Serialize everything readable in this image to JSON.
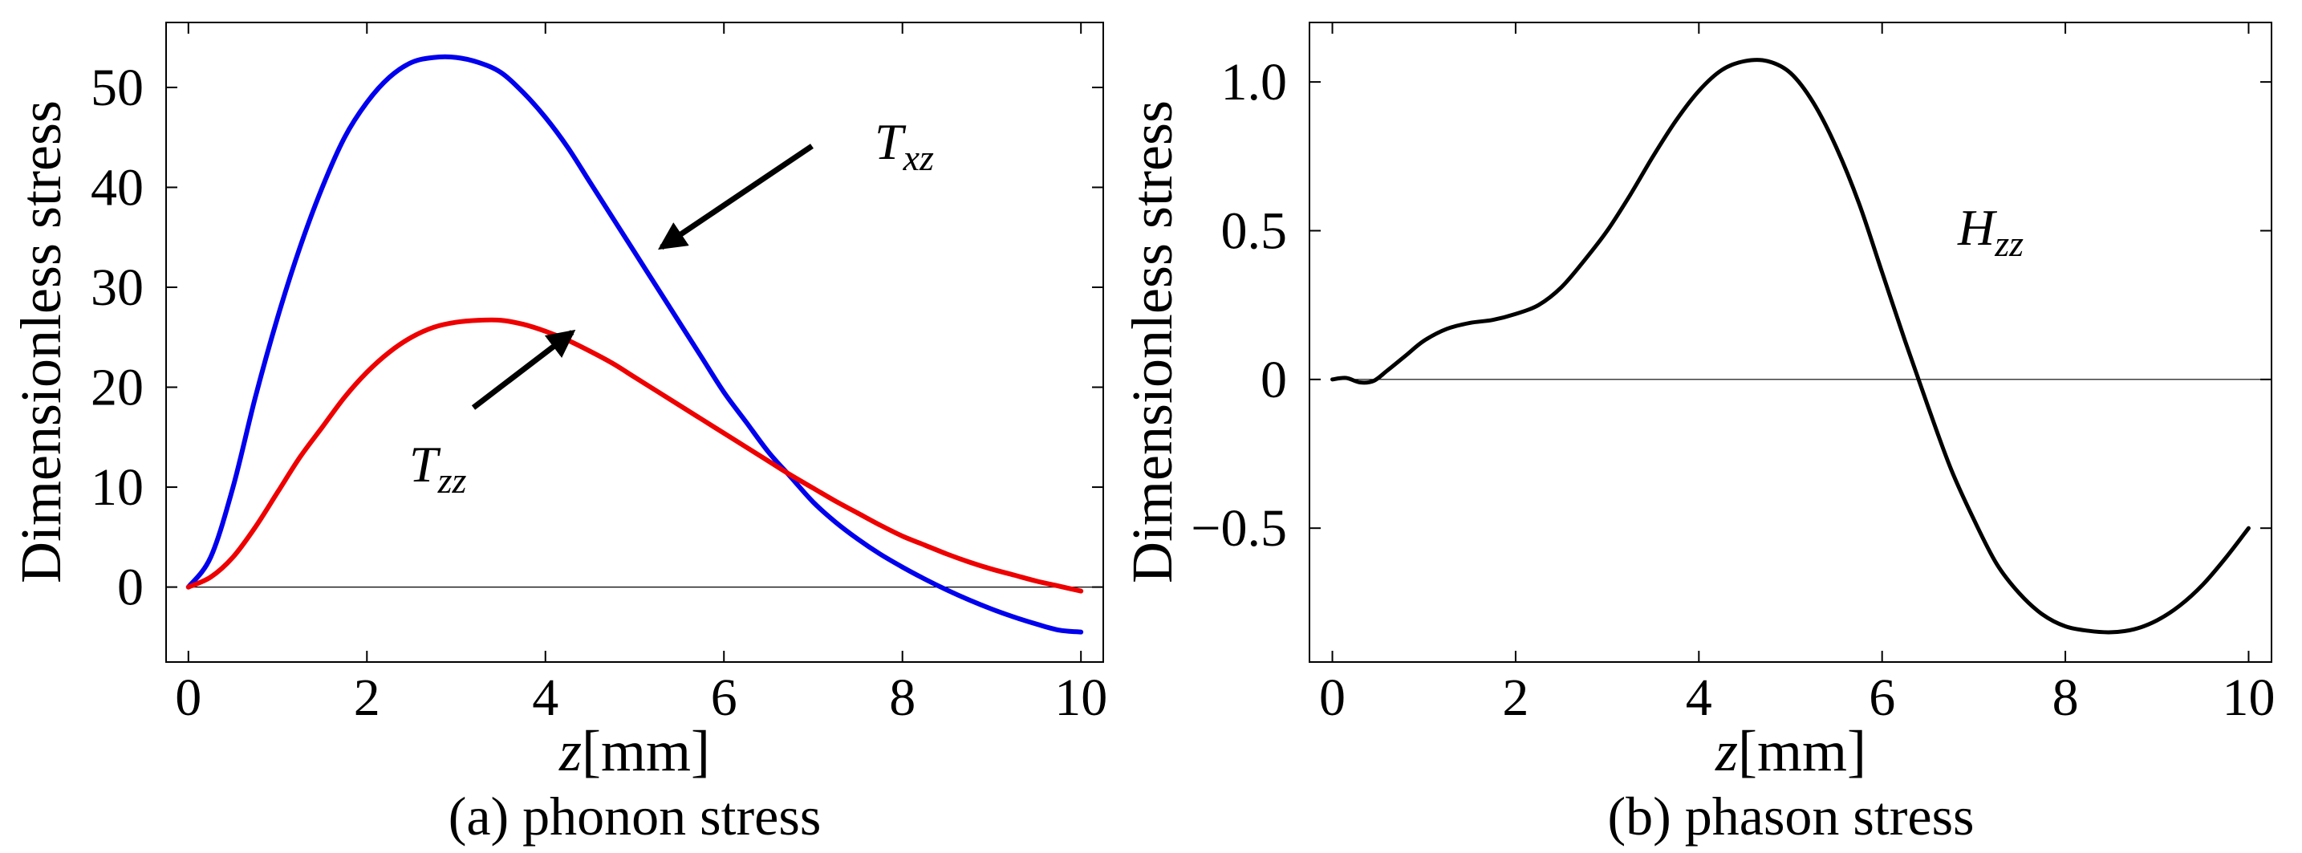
{
  "chart_data": [
    {
      "type": "line",
      "id": "a",
      "caption": "(a) phonon stress",
      "xlabel_var": "z",
      "xlabel_unit": "[mm]",
      "ylabel": "Dimensionless stress",
      "xlim": [
        -0.25,
        10.25
      ],
      "ylim": [
        -7.5,
        56.5
      ],
      "xticks": [
        0,
        2,
        4,
        6,
        8,
        10
      ],
      "yticks": [
        0,
        10,
        20,
        30,
        40,
        50
      ],
      "zero_line": true,
      "series": [
        {
          "name": "Txz",
          "color": "#0000ee",
          "x": [
            0,
            0.25,
            0.5,
            0.75,
            1,
            1.25,
            1.5,
            1.75,
            2,
            2.25,
            2.5,
            2.75,
            3,
            3.25,
            3.5,
            3.75,
            4,
            4.25,
            4.5,
            4.75,
            5,
            5.25,
            5.5,
            5.75,
            6,
            6.25,
            6.5,
            6.75,
            7,
            7.25,
            7.5,
            7.75,
            8,
            8.25,
            8.5,
            8.75,
            9,
            9.25,
            9.5,
            9.75,
            10
          ],
          "y": [
            0,
            3,
            10,
            19,
            27,
            34,
            40,
            45,
            48.5,
            51,
            52.5,
            53,
            53,
            52.5,
            51.5,
            49.5,
            47,
            44,
            40.5,
            37,
            33.5,
            30,
            26.5,
            23,
            19.5,
            16.5,
            13.5,
            11,
            8.5,
            6.5,
            4.8,
            3.3,
            2,
            0.8,
            -0.3,
            -1.3,
            -2.2,
            -3,
            -3.7,
            -4.3,
            -4.5
          ]
        },
        {
          "name": "Tzz",
          "color": "#ee0000",
          "x": [
            0,
            0.25,
            0.5,
            0.75,
            1,
            1.25,
            1.5,
            1.75,
            2,
            2.25,
            2.5,
            2.75,
            3,
            3.25,
            3.5,
            3.75,
            4,
            4.25,
            4.5,
            4.75,
            5,
            5.25,
            5.5,
            5.75,
            6,
            6.25,
            6.5,
            6.75,
            7,
            7.25,
            7.5,
            7.75,
            8,
            8.25,
            8.5,
            8.75,
            9,
            9.25,
            9.5,
            9.75,
            10
          ],
          "y": [
            0,
            1,
            3,
            6,
            9.5,
            13,
            16,
            19,
            21.5,
            23.5,
            25,
            26,
            26.5,
            26.7,
            26.7,
            26.3,
            25.6,
            24.7,
            23.6,
            22.4,
            21,
            19.6,
            18.2,
            16.8,
            15.4,
            14,
            12.6,
            11.2,
            9.9,
            8.6,
            7.4,
            6.2,
            5.1,
            4.2,
            3.3,
            2.5,
            1.8,
            1.2,
            0.6,
            0.1,
            -0.4
          ]
        }
      ],
      "annotations": [
        {
          "label": "T",
          "sub": "xz",
          "series": "Txz",
          "tip_x": 5.3,
          "tip_y": 34
        },
        {
          "label": "T",
          "sub": "zz",
          "series": "Tzz",
          "tip_x": 4.3,
          "tip_y": 25.5
        }
      ]
    },
    {
      "type": "line",
      "id": "b",
      "caption": "(b) phason stress",
      "xlabel_var": "z",
      "xlabel_unit": "[mm]",
      "ylabel": "Dimensionless stress",
      "xlim": [
        -0.25,
        10.25
      ],
      "ylim": [
        -0.95,
        1.2
      ],
      "xticks": [
        0,
        2,
        4,
        6,
        8,
        10
      ],
      "yticks": [
        -0.5,
        0,
        0.5,
        1.0
      ],
      "ytick_labels": [
        "−0.5",
        "0",
        "0.5",
        "1.0"
      ],
      "zero_line": true,
      "series": [
        {
          "name": "Hzz",
          "color": "#000000",
          "x": [
            0,
            0.15,
            0.3,
            0.45,
            0.6,
            0.8,
            1,
            1.25,
            1.5,
            1.75,
            2,
            2.25,
            2.5,
            2.75,
            3,
            3.25,
            3.5,
            3.75,
            4,
            4.25,
            4.5,
            4.75,
            5,
            5.25,
            5.5,
            5.75,
            6,
            6.25,
            6.5,
            6.75,
            7,
            7.25,
            7.5,
            7.75,
            8,
            8.25,
            8.5,
            8.75,
            9,
            9.25,
            9.5,
            9.75,
            10
          ],
          "y": [
            0,
            0.005,
            -0.01,
            -0.005,
            0.03,
            0.08,
            0.13,
            0.17,
            0.19,
            0.2,
            0.22,
            0.25,
            0.31,
            0.4,
            0.5,
            0.62,
            0.75,
            0.87,
            0.97,
            1.04,
            1.07,
            1.07,
            1.03,
            0.93,
            0.78,
            0.59,
            0.36,
            0.13,
            -0.09,
            -0.3,
            -0.47,
            -0.62,
            -0.72,
            -0.79,
            -0.83,
            -0.845,
            -0.85,
            -0.84,
            -0.81,
            -0.76,
            -0.69,
            -0.6,
            -0.5
          ]
        }
      ],
      "annotations": [
        {
          "label": "H",
          "sub": "zz",
          "series": "Hzz"
        }
      ]
    }
  ]
}
